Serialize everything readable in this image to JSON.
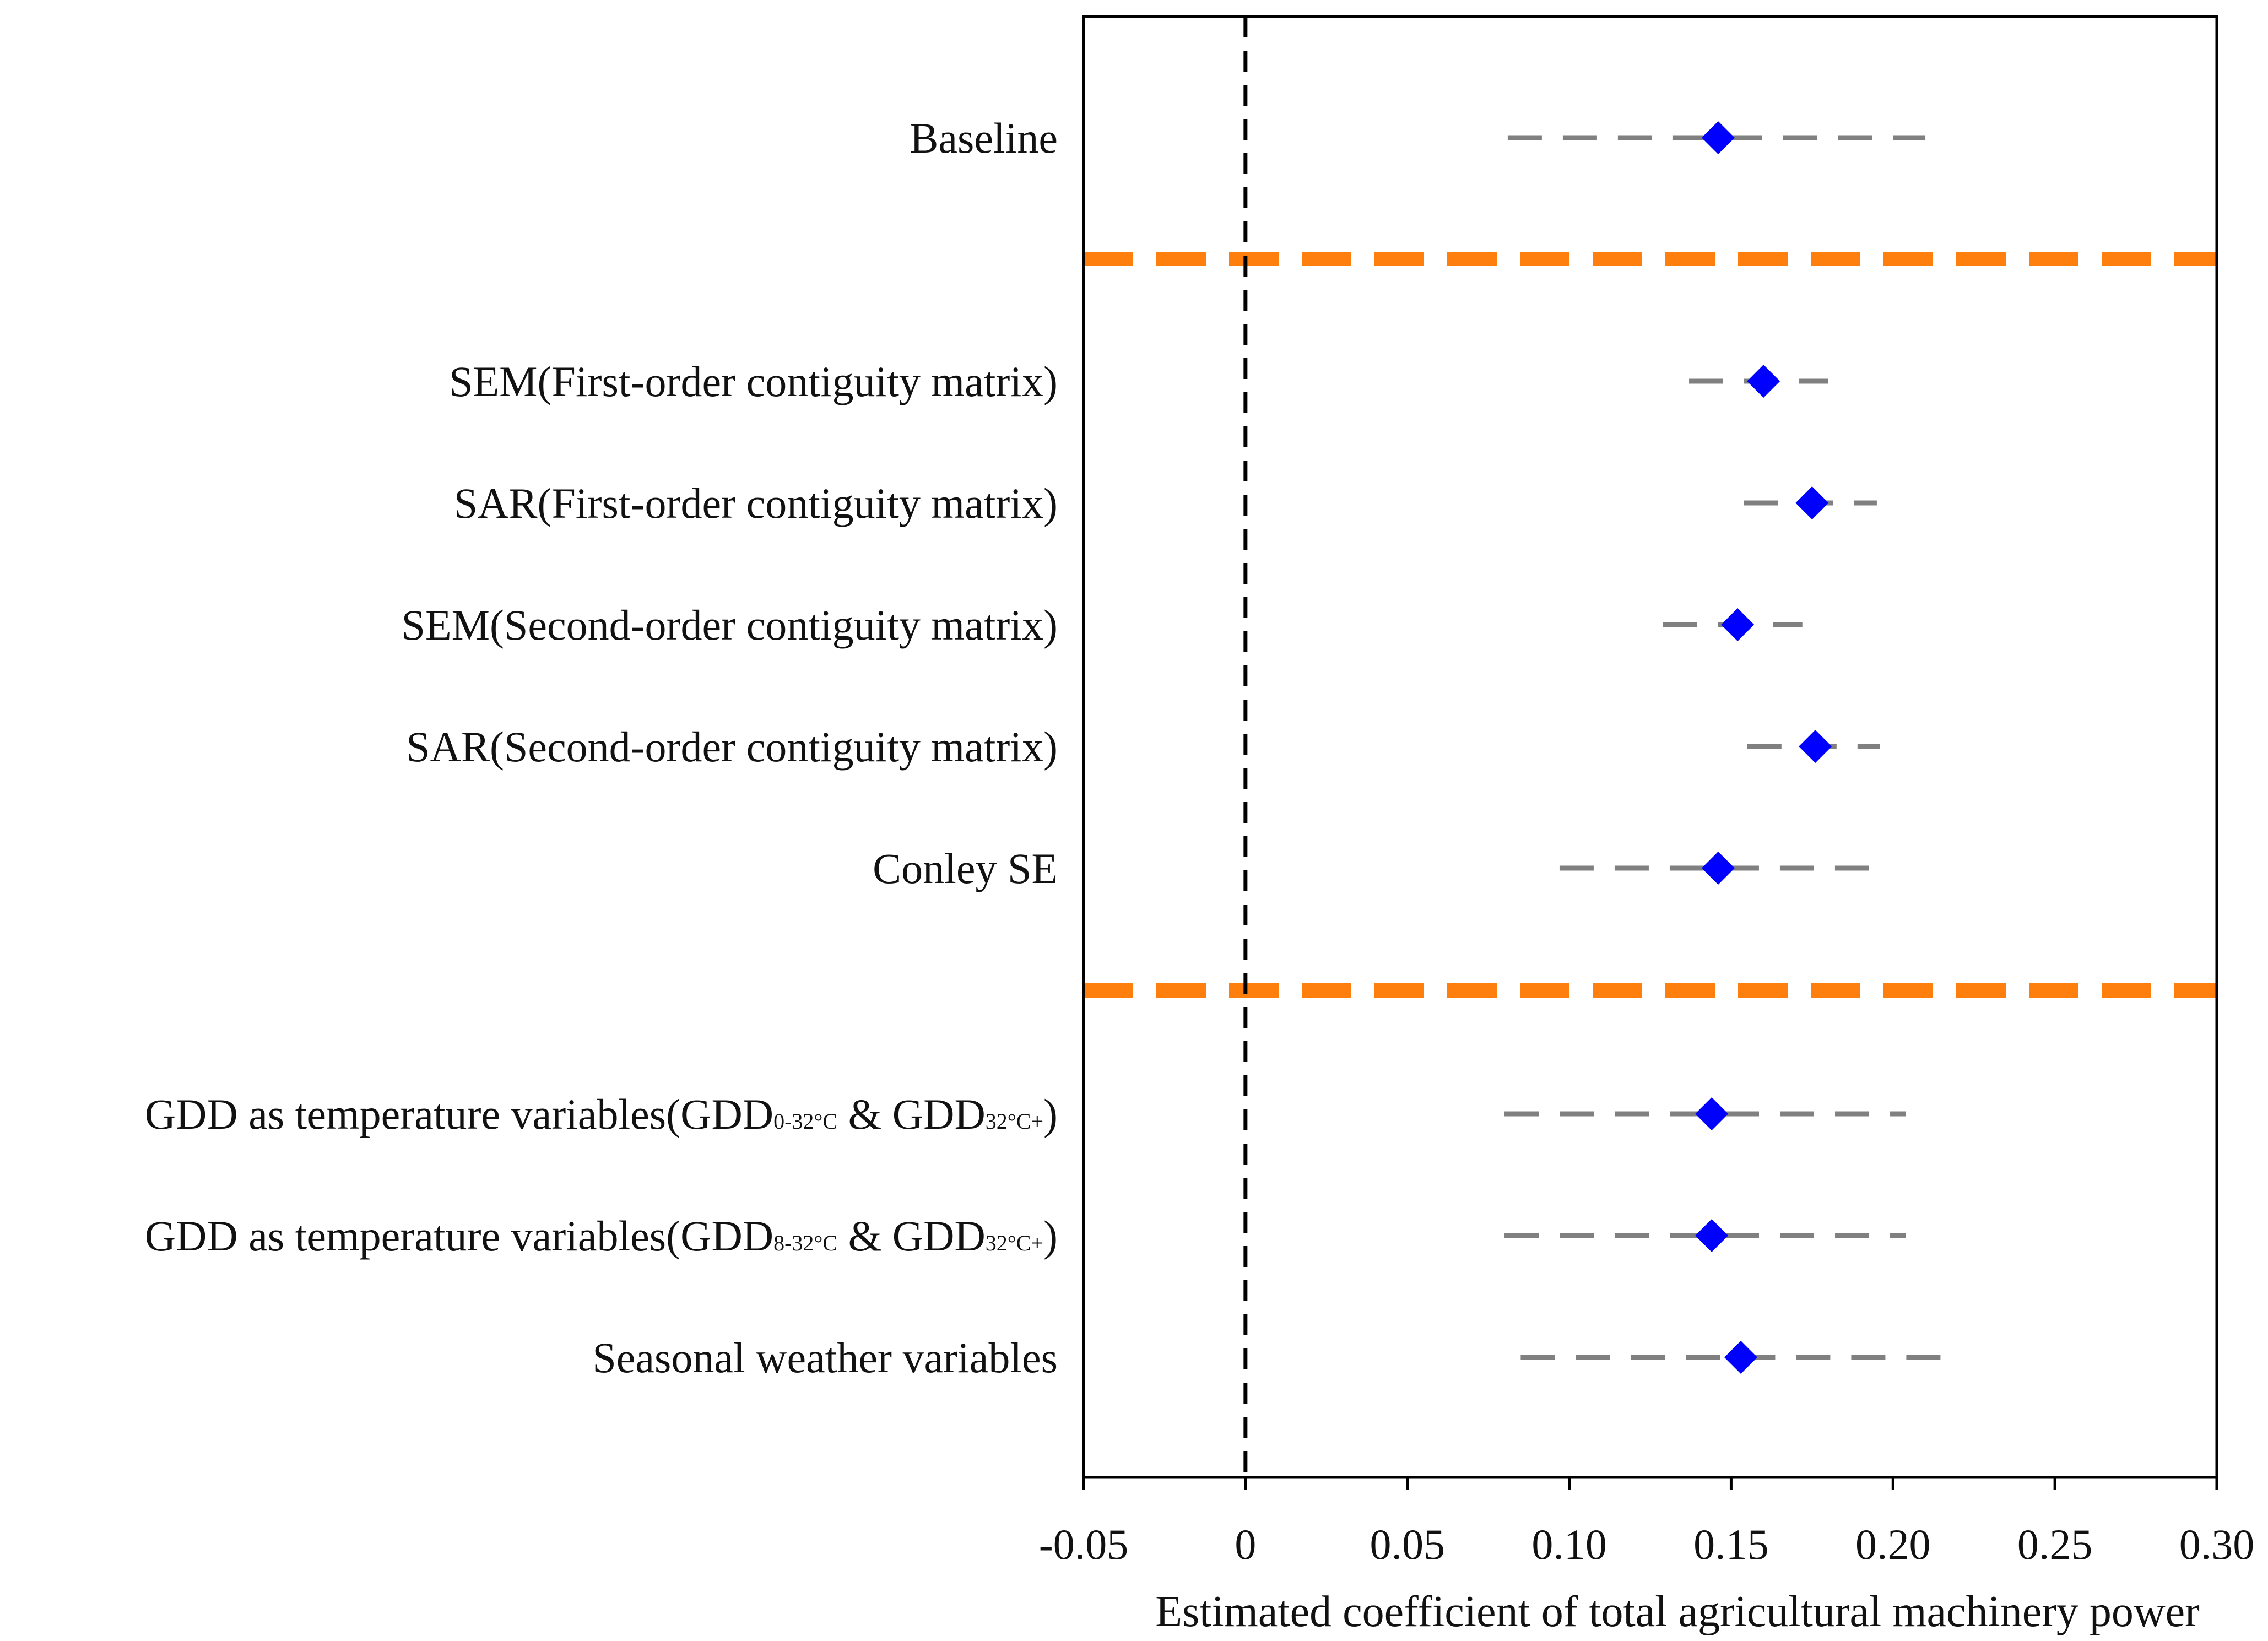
{
  "chart_data": {
    "type": "forest",
    "title": "",
    "xlabel": "Estimated coefficient of total agricultural machinery power",
    "ylabel": "",
    "xlim": [
      -0.05,
      0.3
    ],
    "xticks": [
      -0.05,
      0,
      0.05,
      0.1,
      0.15,
      0.2,
      0.25,
      0.3
    ],
    "xtick_labels": [
      "-0.05",
      "0",
      "0.05",
      "0.10",
      "0.15",
      "0.20",
      "0.25",
      "0.30"
    ],
    "reference_line": 0,
    "group_separators_after": [
      0,
      5
    ],
    "colors": {
      "point": "#0000ff",
      "ci": "#808080",
      "separator": "#ff7f0e",
      "reference": "#000000",
      "axis": "#000000"
    },
    "rows": [
      {
        "label": {
          "main": "Baseline"
        },
        "estimate": 0.146,
        "ci_low": 0.081,
        "ci_high": 0.21
      },
      {
        "label": {
          "main": "SEM(First-order contiguity matrix)"
        },
        "estimate": 0.16,
        "ci_low": 0.137,
        "ci_high": 0.18
      },
      {
        "label": {
          "main": "SAR(First-order contiguity matrix)"
        },
        "estimate": 0.175,
        "ci_low": 0.154,
        "ci_high": 0.195
      },
      {
        "label": {
          "main": "SEM(Second-order contiguity matrix)"
        },
        "estimate": 0.152,
        "ci_low": 0.129,
        "ci_high": 0.172
      },
      {
        "label": {
          "main": "SAR(Second-order contiguity matrix)"
        },
        "estimate": 0.176,
        "ci_low": 0.155,
        "ci_high": 0.196
      },
      {
        "label": {
          "main": "Conley SE"
        },
        "estimate": 0.146,
        "ci_low": 0.097,
        "ci_high": 0.195
      },
      {
        "label": {
          "main": "GDD as temperature variables(GDD",
          "sub1": "0-32°C",
          "mid": " & GDD",
          "sub2": "32°C+",
          "end": ")"
        },
        "estimate": 0.144,
        "ci_low": 0.08,
        "ci_high": 0.204
      },
      {
        "label": {
          "main": "GDD as temperature variables(GDD",
          "sub1": "8-32°C",
          "mid": " & GDD",
          "sub2": "32°C+",
          "end": ")"
        },
        "estimate": 0.144,
        "ci_low": 0.08,
        "ci_high": 0.204
      },
      {
        "label": {
          "main": "Seasonal weather variables"
        },
        "estimate": 0.153,
        "ci_low": 0.085,
        "ci_high": 0.221
      }
    ]
  }
}
